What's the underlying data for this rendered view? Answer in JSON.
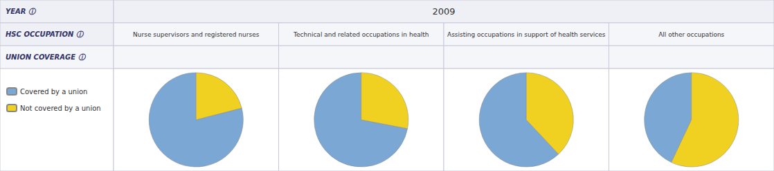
{
  "chart_data": {
    "type": "pie",
    "title": "2009",
    "row_labels": [
      "YEAR ⓘ",
      "HSC OCCUPATION ⓘ",
      "UNION COVERAGE ⓘ"
    ],
    "categories": [
      "Covered by a union",
      "Not covered by a union"
    ],
    "colors": [
      "#7ba7d4",
      "#f0d020"
    ],
    "legend": "left",
    "series": [
      {
        "name": "Nurse supervisors and registered nurses",
        "values": [
          79,
          21
        ]
      },
      {
        "name": "Technical and related occupations in health",
        "values": [
          72,
          28
        ]
      },
      {
        "name": "Assisting occupations in support of health services",
        "values": [
          62,
          38
        ]
      },
      {
        "name": "All other occupations",
        "values": [
          43,
          57
        ]
      }
    ]
  }
}
